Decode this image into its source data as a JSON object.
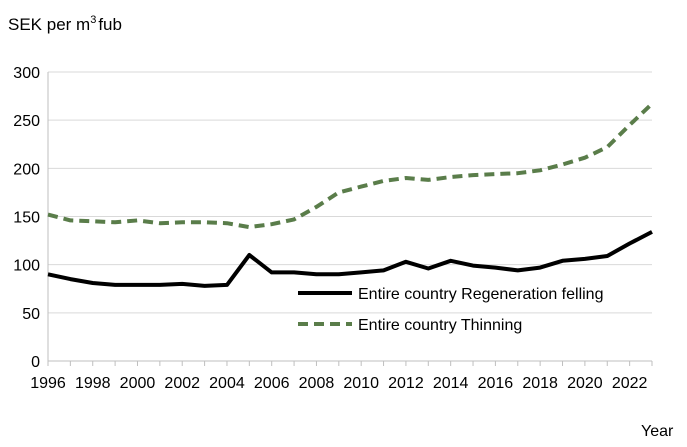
{
  "chart_data": {
    "type": "line",
    "ylabel_prefix": "SEK per m",
    "ylabel_sup": "3",
    "ylabel_suffix": "fub",
    "xlabel": "Year",
    "x": [
      1996,
      1997,
      1998,
      1999,
      2000,
      2001,
      2002,
      2003,
      2004,
      2005,
      2006,
      2007,
      2008,
      2009,
      2010,
      2011,
      2012,
      2013,
      2014,
      2015,
      2016,
      2017,
      2018,
      2019,
      2020,
      2021,
      2022,
      2023
    ],
    "xticks": [
      1996,
      1998,
      2000,
      2002,
      2004,
      2006,
      2008,
      2010,
      2012,
      2014,
      2016,
      2018,
      2020,
      2022
    ],
    "ylim": [
      0,
      300
    ],
    "yticks": [
      0,
      50,
      100,
      150,
      200,
      250,
      300
    ],
    "xlim": [
      1996,
      2023
    ],
    "grid": "horizontal",
    "legend_position": "right",
    "series": [
      {
        "name": "Entire country Regeneration felling",
        "color": "#000000",
        "style": "solid",
        "values": [
          90,
          85,
          81,
          79,
          79,
          79,
          80,
          78,
          79,
          110,
          92,
          92,
          90,
          90,
          92,
          94,
          103,
          96,
          104,
          99,
          97,
          94,
          97,
          104,
          106,
          109,
          122,
          134
        ]
      },
      {
        "name": "Entire country Thinning",
        "color": "#5a7d4a",
        "style": "dashed",
        "values": [
          152,
          146,
          145,
          144,
          146,
          143,
          144,
          144,
          143,
          139,
          142,
          147,
          160,
          175,
          181,
          187,
          190,
          188,
          191,
          193,
          194,
          195,
          198,
          204,
          211,
          222,
          245,
          267
        ]
      }
    ]
  }
}
